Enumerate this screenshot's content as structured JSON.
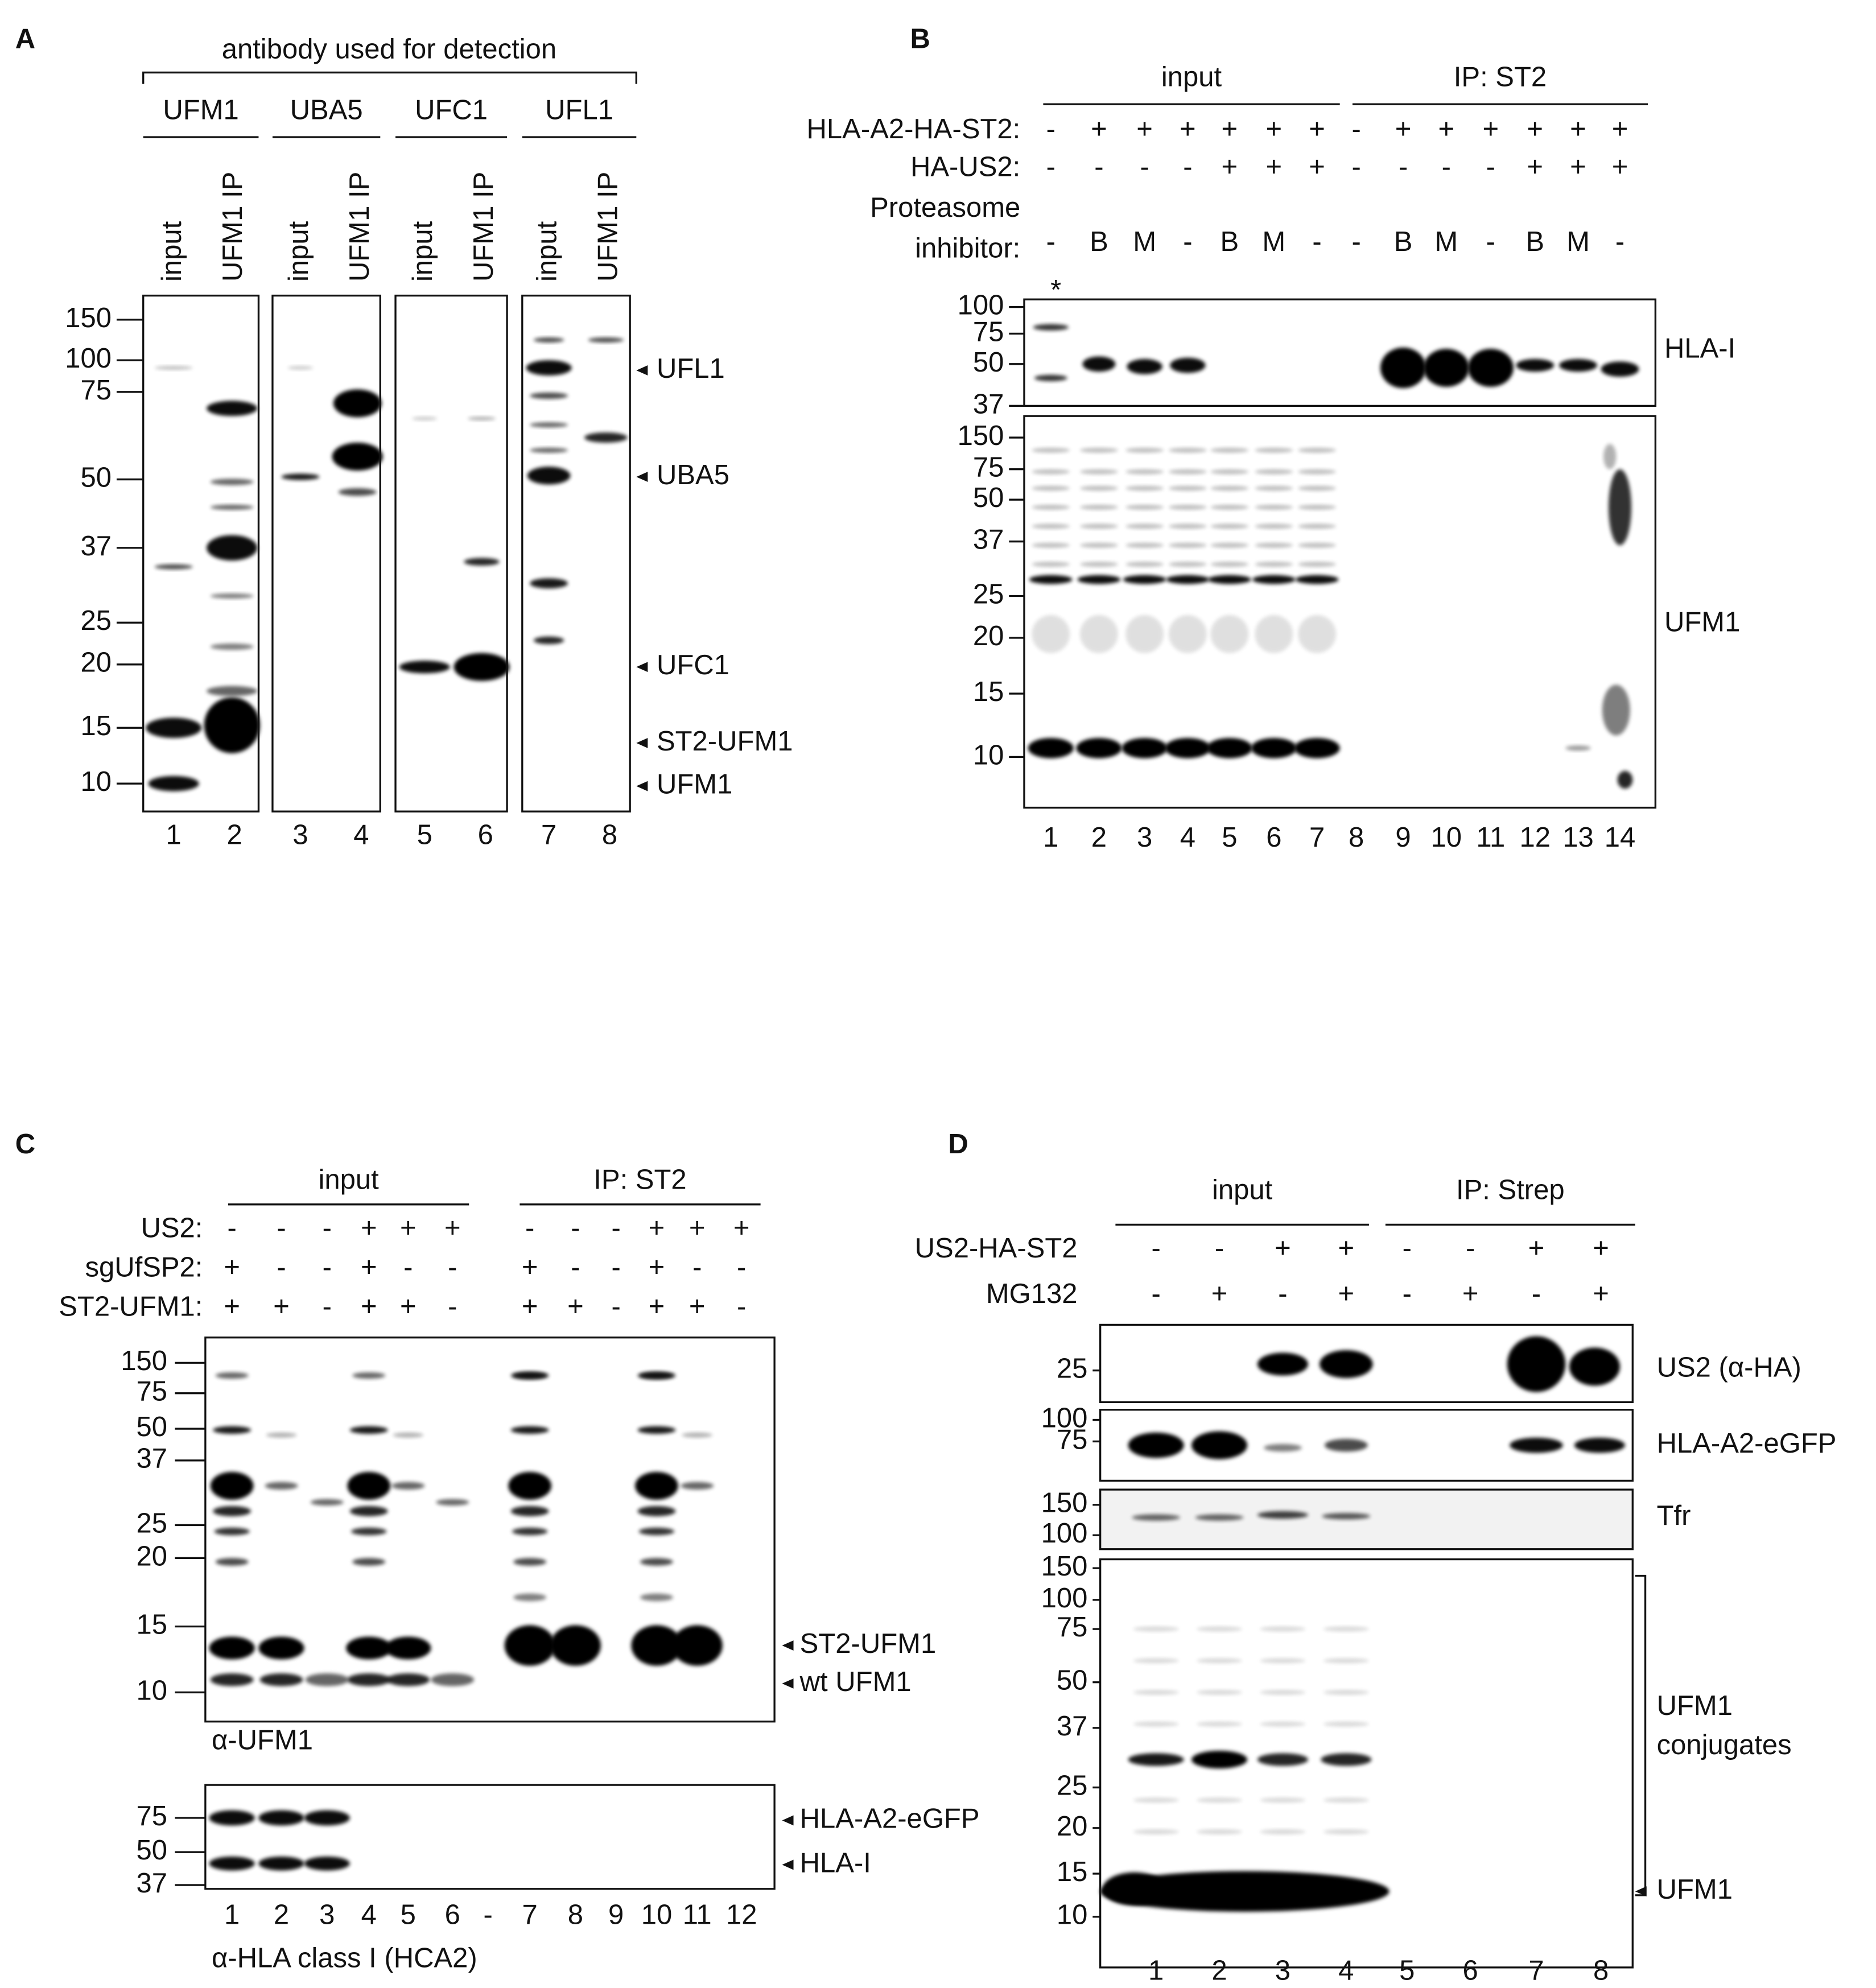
{
  "panel_a": {
    "label": "A",
    "header": "antibody used for detection",
    "groups": [
      "UFM1",
      "UBA5",
      "UFC1",
      "UFL1"
    ],
    "lane_headers": [
      "input",
      "UFM1 IP",
      "input",
      "UFM1 IP",
      "input",
      "UFM1 IP",
      "input",
      "UFM1 IP"
    ],
    "markers": [
      150,
      100,
      75,
      50,
      37,
      25,
      20,
      15,
      10
    ],
    "band_labels": [
      "UFL1",
      "UBA5",
      "UFC1",
      "ST2-UFM1",
      "UFM1"
    ],
    "lanes": [
      "1",
      "2",
      "3",
      "4",
      "5",
      "6",
      "7",
      "8"
    ]
  },
  "panel_b": {
    "label": "B",
    "groups": [
      "input",
      "IP: ST2"
    ],
    "rows": [
      {
        "label": "HLA-A2-HA-ST2:",
        "values": [
          "-",
          "+",
          "+",
          "+",
          "+",
          "+",
          "+",
          "-",
          "+",
          "+",
          "+",
          "+",
          "+",
          "+"
        ]
      },
      {
        "label": "HA-US2:",
        "values": [
          "-",
          "-",
          "-",
          "-",
          "+",
          "+",
          "+",
          "-",
          "-",
          "-",
          "-",
          "+",
          "+",
          "+"
        ]
      },
      {
        "label": [
          "Proteasome",
          "inhibitor:"
        ],
        "values": [
          "-",
          "B",
          "M",
          "-",
          "B",
          "M",
          "-",
          "-",
          "B",
          "M",
          "-",
          "B",
          "M",
          "-"
        ]
      }
    ],
    "asterisk": "*",
    "markers_top": [
      100,
      75,
      50,
      37
    ],
    "markers_bottom": [
      150,
      75,
      50,
      37,
      25,
      20,
      15,
      10
    ],
    "blot_labels": [
      "HLA-I",
      "UFM1"
    ],
    "lanes": [
      "1",
      "2",
      "3",
      "4",
      "5",
      "6",
      "7",
      "8",
      "9",
      "10",
      "11",
      "12",
      "13",
      "14"
    ]
  },
  "panel_c": {
    "label": "C",
    "groups": [
      "input",
      "IP: ST2"
    ],
    "rows": [
      {
        "label": "US2:",
        "values": [
          "-",
          "-",
          "-",
          "+",
          "+",
          "+",
          "-",
          "-",
          "-",
          "+",
          "+",
          "+"
        ]
      },
      {
        "label": "sgUfSP2:",
        "values": [
          "+",
          "-",
          "-",
          "+",
          "-",
          "-",
          "+",
          "-",
          "-",
          "+",
          "-",
          "-"
        ]
      },
      {
        "label": "ST2-UFM1:",
        "values": [
          "+",
          "+",
          "-",
          "+",
          "+",
          "-",
          "+",
          "+",
          "-",
          "+",
          "+",
          "-"
        ]
      }
    ],
    "markers_top": [
      150,
      75,
      50,
      37,
      25,
      20,
      15,
      10
    ],
    "band_labels_top": [
      "ST2-UFM1",
      "wt UFM1"
    ],
    "antibody_top": "α-UFM1",
    "markers_bottom": [
      75,
      50,
      37
    ],
    "band_labels_bottom": [
      "HLA-A2-eGFP",
      "HLA-I"
    ],
    "lanes": [
      "1",
      "2",
      "3",
      "4",
      "5",
      "6",
      "-",
      "7",
      "8",
      "9",
      "10",
      "11",
      "12"
    ],
    "antibody_bottom": "α-HLA class I (HCA2)"
  },
  "panel_d": {
    "label": "D",
    "groups": [
      "input",
      "IP: Strep"
    ],
    "rows": [
      {
        "label": "US2-HA-ST2",
        "values": [
          "-",
          "-",
          "+",
          "+",
          "-",
          "-",
          "+",
          "+"
        ]
      },
      {
        "label": "MG132",
        "values": [
          "-",
          "+",
          "-",
          "+",
          "-",
          "+",
          "-",
          "+"
        ]
      }
    ],
    "blots": [
      {
        "label": "US2 (α-HA)",
        "markers": [
          25
        ]
      },
      {
        "label": "HLA-A2-eGFP",
        "markers": [
          100,
          75
        ]
      },
      {
        "label": "Tfr",
        "markers": [
          150,
          100
        ]
      },
      {
        "label": [
          "UFM1",
          "conjugates"
        ],
        "markers": [
          150,
          100,
          75,
          50,
          37,
          25,
          20,
          15,
          10
        ]
      }
    ],
    "free_label": "UFM1",
    "lanes": [
      "1",
      "2",
      "3",
      "4",
      "5",
      "6",
      "7",
      "8"
    ]
  }
}
